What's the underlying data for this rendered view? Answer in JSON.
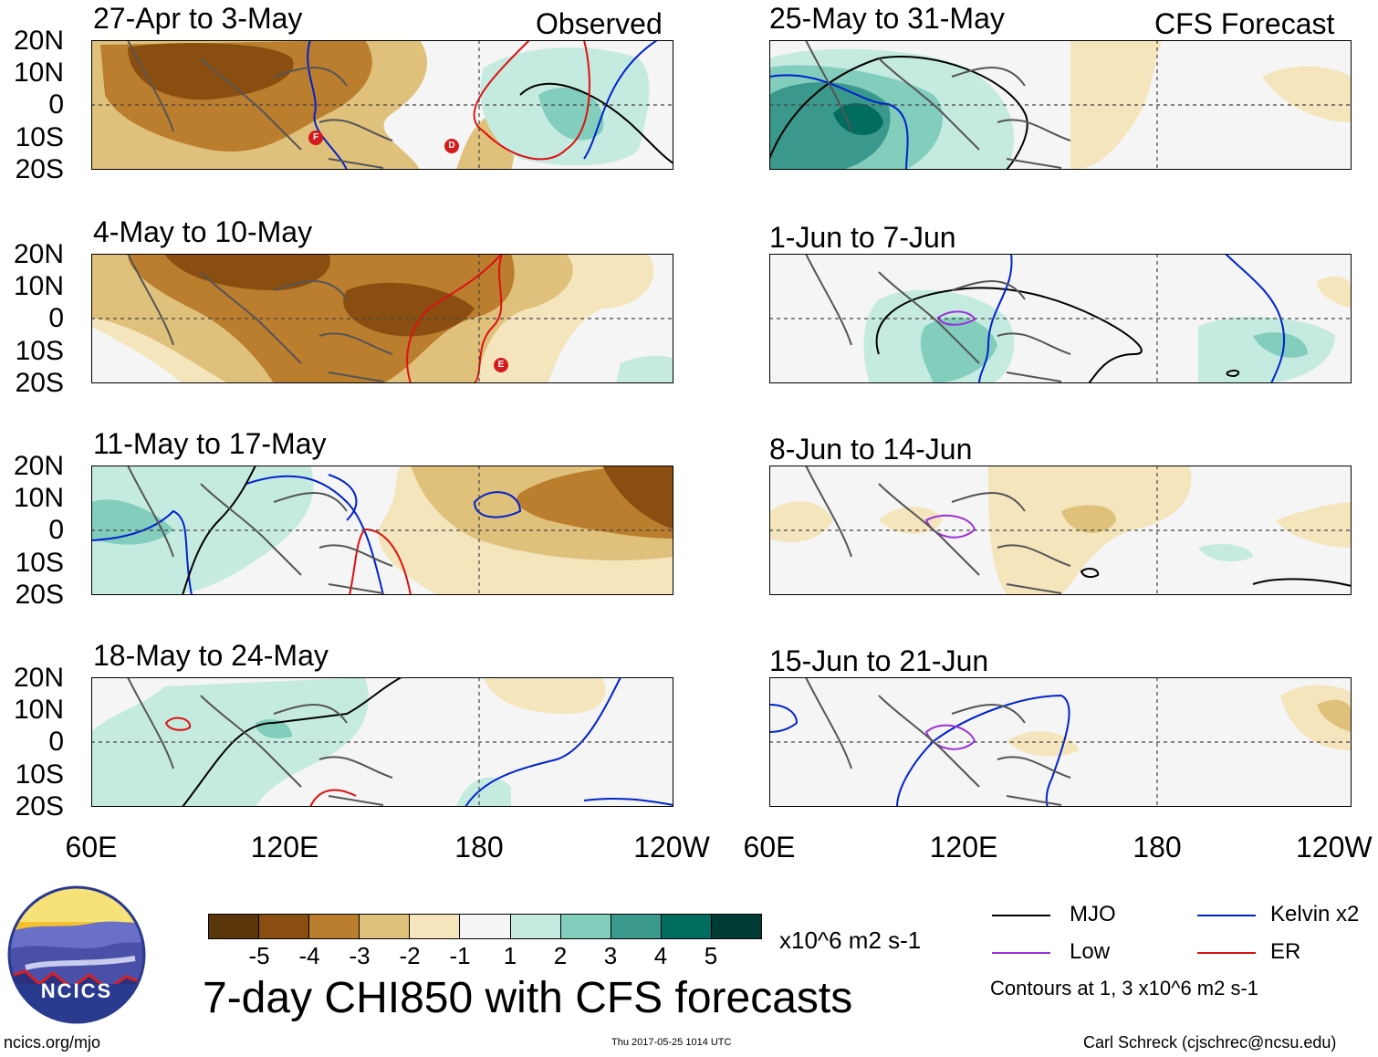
{
  "columns": {
    "observed": "Observed",
    "forecast": "CFS Forecast"
  },
  "panels": {
    "left": [
      "27-Apr to 3-May",
      "4-May to 10-May",
      "11-May to 17-May",
      "18-May to 24-May"
    ],
    "right": [
      "25-May to 31-May",
      "1-Jun to 7-Jun",
      "8-Jun to 14-Jun",
      "15-Jun to 21-Jun"
    ]
  },
  "lat_labels": [
    "20N",
    "10N",
    "0",
    "10S",
    "20S"
  ],
  "lon_labels": [
    "60E",
    "120E",
    "180",
    "120W"
  ],
  "storm_markers": [
    "F",
    "D",
    "E"
  ],
  "colorbar": {
    "ticks": [
      "-5",
      "-4",
      "-3",
      "-2",
      "-1",
      "1",
      "2",
      "3",
      "4",
      "5"
    ],
    "units": "x10^6 m2 s-1",
    "colors": [
      "#5a3608",
      "#8a4f10",
      "#bb7d2e",
      "#dfc17c",
      "#f4e5bd",
      "#f5f5f5",
      "#c5ebe1",
      "#82cdbc",
      "#3a988c",
      "#006d60",
      "#013c34"
    ]
  },
  "title": "7-day CHI850 with CFS forecasts",
  "legend": {
    "items": [
      {
        "label": "MJO",
        "color": "#000000"
      },
      {
        "label": "Kelvin x2",
        "color": "#0022cc"
      },
      {
        "label": "Low",
        "color": "#9b30d9"
      },
      {
        "label": "ER",
        "color": "#dd1111"
      }
    ],
    "note": "Contours at 1, 3 x10^6 m2 s-1"
  },
  "logo": {
    "text": "NCICS"
  },
  "footer": {
    "url": "ncics.org/mjo",
    "timestamp": "Thu 2017-05-25 1014 UTC",
    "credit": "Carl Schreck (cjschrec@ncsu.edu)"
  }
}
